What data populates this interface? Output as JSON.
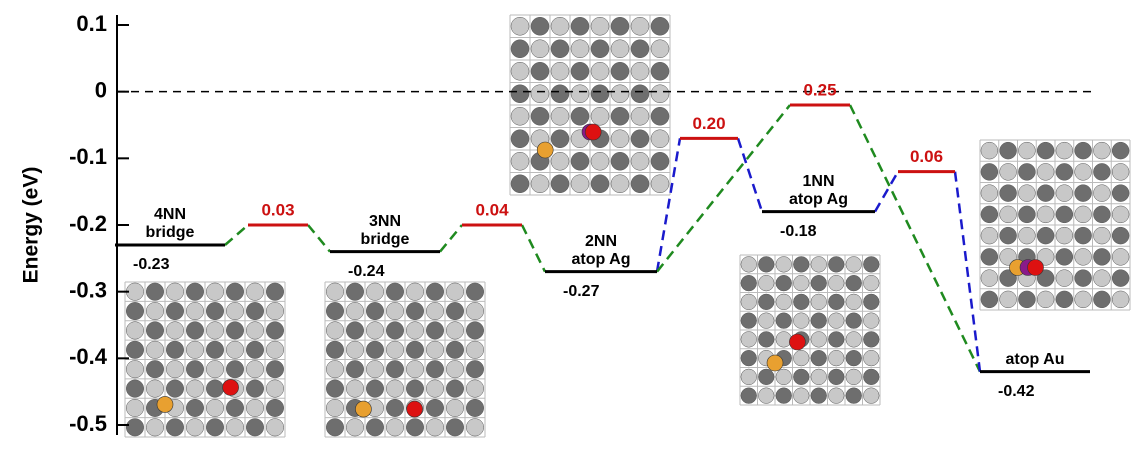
{
  "chart_data": {
    "type": "energy-levels",
    "ylabel": "Energy (eV)",
    "ylim": [
      -0.515,
      0.115
    ],
    "yticks": [
      -0.5,
      -0.4,
      -0.3,
      -0.2,
      -0.1,
      0,
      0.1
    ],
    "reference_line": 0,
    "states": {
      "names": [
        [
          "4NN",
          "bridge"
        ],
        [
          "3NN",
          "bridge"
        ],
        [
          "2NN",
          "atop Ag"
        ],
        [
          "1NN",
          "atop Ag"
        ],
        [
          "atop Au"
        ]
      ],
      "values": [
        -0.23,
        -0.24,
        -0.27,
        -0.18,
        -0.42
      ],
      "color": "#000000"
    },
    "transitions": {
      "values": [
        -0.2,
        -0.2,
        -0.07,
        -0.02,
        -0.12
      ],
      "barrier_labels": [
        "0.03",
        "0.04",
        "0.20",
        "0.25",
        "0.06"
      ],
      "color": "#cc1111"
    },
    "path_colors": {
      "green": "#1f8a1f",
      "blue": "#1a1acc"
    }
  }
}
